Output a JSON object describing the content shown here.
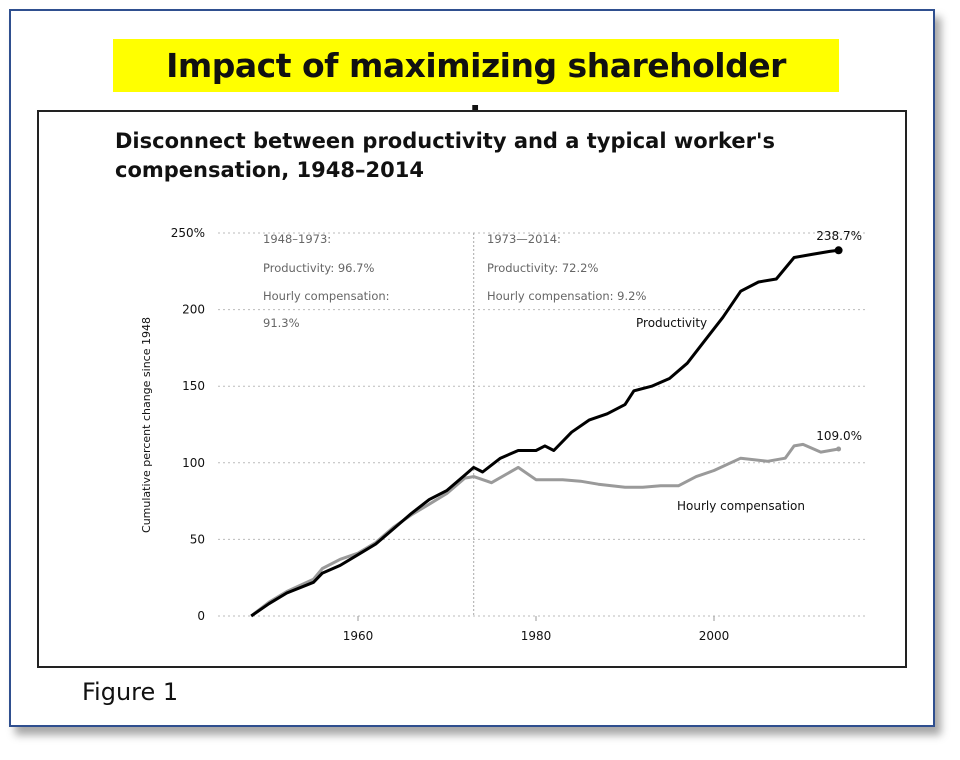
{
  "headline": "Impact of maximizing shareholder value",
  "caption": "Figure 1",
  "colors": {
    "highlight": "#ffff00",
    "productivity": "#000000",
    "compensation": "#9a9a9a",
    "frame": "#2f4f8f"
  },
  "chart_data": {
    "type": "line",
    "title": "Disconnect between productivity and a typical worker's compensation, 1948–2014",
    "ylabel": "Cumulative percent change since 1948",
    "xlabel": "",
    "xlim": [
      1948,
      2014
    ],
    "ylim": [
      0,
      250
    ],
    "x_ticks": [
      "1960",
      "1980",
      "2000"
    ],
    "y_ticks": [
      "0",
      "50",
      "100",
      "150",
      "200",
      "250%"
    ],
    "grid": "horizontal dotted",
    "annotations": {
      "period1": [
        "1948–1973:",
        "Productivity: 96.7%",
        "Hourly compensation:",
        "91.3%"
      ],
      "period2": [
        "1973—2014:",
        "Productivity: 72.2%",
        "Hourly compensation: 9.2%"
      ],
      "end_productivity": "238.7%",
      "end_compensation": "109.0%"
    },
    "series": [
      {
        "name": "Productivity",
        "x": [
          1948,
          1950,
          1952,
          1955,
          1956,
          1958,
          1960,
          1962,
          1964,
          1966,
          1968,
          1970,
          1972,
          1973,
          1974,
          1976,
          1978,
          1980,
          1981,
          1982,
          1984,
          1986,
          1988,
          1990,
          1991,
          1993,
          1995,
          1997,
          1999,
          2001,
          2003,
          2005,
          2007,
          2009,
          2011,
          2013,
          2014
        ],
        "values": [
          0,
          8,
          15,
          22,
          28,
          33,
          40,
          47,
          57,
          67,
          76,
          82,
          92,
          97,
          94,
          103,
          108,
          108,
          111,
          108,
          120,
          128,
          132,
          138,
          147,
          150,
          155,
          165,
          180,
          195,
          212,
          218,
          220,
          234,
          236,
          238,
          238.7
        ]
      },
      {
        "name": "Hourly compensation",
        "x": [
          1948,
          1950,
          1952,
          1955,
          1956,
          1958,
          1960,
          1962,
          1964,
          1966,
          1968,
          1970,
          1972,
          1973,
          1975,
          1978,
          1980,
          1983,
          1985,
          1987,
          1990,
          1992,
          1994,
          1996,
          1998,
          2000,
          2003,
          2006,
          2008,
          2009,
          2010,
          2012,
          2014
        ],
        "values": [
          0,
          9,
          16,
          24,
          31,
          37,
          41,
          48,
          58,
          66,
          73,
          80,
          90,
          91,
          87,
          97,
          89,
          89,
          88,
          86,
          84,
          84,
          85,
          85,
          91,
          95,
          103,
          101,
          103,
          111,
          112,
          107,
          109
        ]
      }
    ]
  }
}
